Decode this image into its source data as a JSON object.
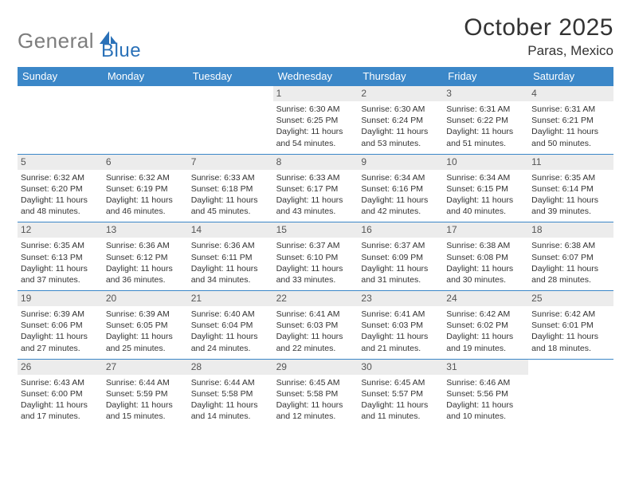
{
  "logo": {
    "gray": "General",
    "blue": "Blue"
  },
  "title": "October 2025",
  "location": "Paras, Mexico",
  "colors": {
    "header_bg": "#3b87c8",
    "daynum_bg": "#ececec",
    "rule": "#3b87c8",
    "logo_gray": "#7d7d7d",
    "logo_blue": "#2a71b8"
  },
  "dow": [
    "Sunday",
    "Monday",
    "Tuesday",
    "Wednesday",
    "Thursday",
    "Friday",
    "Saturday"
  ],
  "weeks": [
    [
      {
        "n": "",
        "sr": "",
        "ss": "",
        "dl": ""
      },
      {
        "n": "",
        "sr": "",
        "ss": "",
        "dl": ""
      },
      {
        "n": "",
        "sr": "",
        "ss": "",
        "dl": ""
      },
      {
        "n": "1",
        "sr": "Sunrise: 6:30 AM",
        "ss": "Sunset: 6:25 PM",
        "dl": "Daylight: 11 hours and 54 minutes."
      },
      {
        "n": "2",
        "sr": "Sunrise: 6:30 AM",
        "ss": "Sunset: 6:24 PM",
        "dl": "Daylight: 11 hours and 53 minutes."
      },
      {
        "n": "3",
        "sr": "Sunrise: 6:31 AM",
        "ss": "Sunset: 6:22 PM",
        "dl": "Daylight: 11 hours and 51 minutes."
      },
      {
        "n": "4",
        "sr": "Sunrise: 6:31 AM",
        "ss": "Sunset: 6:21 PM",
        "dl": "Daylight: 11 hours and 50 minutes."
      }
    ],
    [
      {
        "n": "5",
        "sr": "Sunrise: 6:32 AM",
        "ss": "Sunset: 6:20 PM",
        "dl": "Daylight: 11 hours and 48 minutes."
      },
      {
        "n": "6",
        "sr": "Sunrise: 6:32 AM",
        "ss": "Sunset: 6:19 PM",
        "dl": "Daylight: 11 hours and 46 minutes."
      },
      {
        "n": "7",
        "sr": "Sunrise: 6:33 AM",
        "ss": "Sunset: 6:18 PM",
        "dl": "Daylight: 11 hours and 45 minutes."
      },
      {
        "n": "8",
        "sr": "Sunrise: 6:33 AM",
        "ss": "Sunset: 6:17 PM",
        "dl": "Daylight: 11 hours and 43 minutes."
      },
      {
        "n": "9",
        "sr": "Sunrise: 6:34 AM",
        "ss": "Sunset: 6:16 PM",
        "dl": "Daylight: 11 hours and 42 minutes."
      },
      {
        "n": "10",
        "sr": "Sunrise: 6:34 AM",
        "ss": "Sunset: 6:15 PM",
        "dl": "Daylight: 11 hours and 40 minutes."
      },
      {
        "n": "11",
        "sr": "Sunrise: 6:35 AM",
        "ss": "Sunset: 6:14 PM",
        "dl": "Daylight: 11 hours and 39 minutes."
      }
    ],
    [
      {
        "n": "12",
        "sr": "Sunrise: 6:35 AM",
        "ss": "Sunset: 6:13 PM",
        "dl": "Daylight: 11 hours and 37 minutes."
      },
      {
        "n": "13",
        "sr": "Sunrise: 6:36 AM",
        "ss": "Sunset: 6:12 PM",
        "dl": "Daylight: 11 hours and 36 minutes."
      },
      {
        "n": "14",
        "sr": "Sunrise: 6:36 AM",
        "ss": "Sunset: 6:11 PM",
        "dl": "Daylight: 11 hours and 34 minutes."
      },
      {
        "n": "15",
        "sr": "Sunrise: 6:37 AM",
        "ss": "Sunset: 6:10 PM",
        "dl": "Daylight: 11 hours and 33 minutes."
      },
      {
        "n": "16",
        "sr": "Sunrise: 6:37 AM",
        "ss": "Sunset: 6:09 PM",
        "dl": "Daylight: 11 hours and 31 minutes."
      },
      {
        "n": "17",
        "sr": "Sunrise: 6:38 AM",
        "ss": "Sunset: 6:08 PM",
        "dl": "Daylight: 11 hours and 30 minutes."
      },
      {
        "n": "18",
        "sr": "Sunrise: 6:38 AM",
        "ss": "Sunset: 6:07 PM",
        "dl": "Daylight: 11 hours and 28 minutes."
      }
    ],
    [
      {
        "n": "19",
        "sr": "Sunrise: 6:39 AM",
        "ss": "Sunset: 6:06 PM",
        "dl": "Daylight: 11 hours and 27 minutes."
      },
      {
        "n": "20",
        "sr": "Sunrise: 6:39 AM",
        "ss": "Sunset: 6:05 PM",
        "dl": "Daylight: 11 hours and 25 minutes."
      },
      {
        "n": "21",
        "sr": "Sunrise: 6:40 AM",
        "ss": "Sunset: 6:04 PM",
        "dl": "Daylight: 11 hours and 24 minutes."
      },
      {
        "n": "22",
        "sr": "Sunrise: 6:41 AM",
        "ss": "Sunset: 6:03 PM",
        "dl": "Daylight: 11 hours and 22 minutes."
      },
      {
        "n": "23",
        "sr": "Sunrise: 6:41 AM",
        "ss": "Sunset: 6:03 PM",
        "dl": "Daylight: 11 hours and 21 minutes."
      },
      {
        "n": "24",
        "sr": "Sunrise: 6:42 AM",
        "ss": "Sunset: 6:02 PM",
        "dl": "Daylight: 11 hours and 19 minutes."
      },
      {
        "n": "25",
        "sr": "Sunrise: 6:42 AM",
        "ss": "Sunset: 6:01 PM",
        "dl": "Daylight: 11 hours and 18 minutes."
      }
    ],
    [
      {
        "n": "26",
        "sr": "Sunrise: 6:43 AM",
        "ss": "Sunset: 6:00 PM",
        "dl": "Daylight: 11 hours and 17 minutes."
      },
      {
        "n": "27",
        "sr": "Sunrise: 6:44 AM",
        "ss": "Sunset: 5:59 PM",
        "dl": "Daylight: 11 hours and 15 minutes."
      },
      {
        "n": "28",
        "sr": "Sunrise: 6:44 AM",
        "ss": "Sunset: 5:58 PM",
        "dl": "Daylight: 11 hours and 14 minutes."
      },
      {
        "n": "29",
        "sr": "Sunrise: 6:45 AM",
        "ss": "Sunset: 5:58 PM",
        "dl": "Daylight: 11 hours and 12 minutes."
      },
      {
        "n": "30",
        "sr": "Sunrise: 6:45 AM",
        "ss": "Sunset: 5:57 PM",
        "dl": "Daylight: 11 hours and 11 minutes."
      },
      {
        "n": "31",
        "sr": "Sunrise: 6:46 AM",
        "ss": "Sunset: 5:56 PM",
        "dl": "Daylight: 11 hours and 10 minutes."
      },
      {
        "n": "",
        "sr": "",
        "ss": "",
        "dl": ""
      }
    ]
  ]
}
